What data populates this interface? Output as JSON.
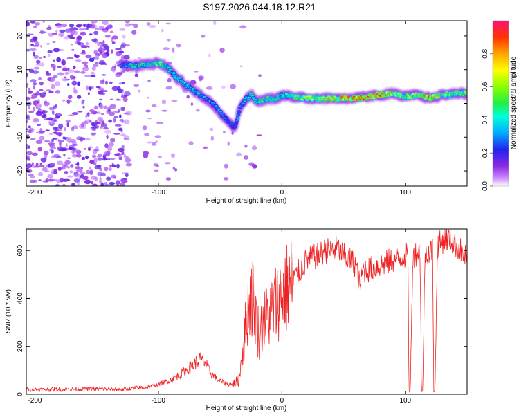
{
  "title": "S197.2026.044.18.12.R21",
  "chart_data": [
    {
      "type": "heatmap",
      "title": "S197.2026.044.18.12.R21",
      "xlabel": "Height of straight line (km)",
      "ylabel": "Frequency (Hz)",
      "xlim": [
        -207,
        150
      ],
      "ylim": [
        -24.5,
        24.5
      ],
      "xticks": [
        "-200",
        "-100",
        "0",
        "100"
      ],
      "xtick_values": [
        -200,
        -100,
        0,
        100
      ],
      "yticks": [
        "20",
        "10",
        "0",
        "-10",
        "-20"
      ],
      "ytick_values": [
        20,
        10,
        0,
        -10,
        -20
      ],
      "colorbar": {
        "label": "Normalized spectral amplitude",
        "range": [
          0,
          1
        ],
        "ticks": [
          "0.0",
          "0.2",
          "0.4",
          "0.6",
          "0.8"
        ],
        "tick_values": [
          0.0,
          0.2,
          0.4,
          0.6,
          0.8
        ]
      },
      "ridge": {
        "x": [
          -130,
          -120,
          -110,
          -100,
          -92,
          -85,
          -78,
          -70,
          -62,
          -55,
          -48,
          -42,
          -38,
          -34,
          -30,
          -25,
          -20,
          -15,
          -10,
          -5,
          0,
          10,
          20,
          40,
          60,
          80,
          90,
          100,
          110,
          120,
          130,
          140,
          150
        ],
        "y": [
          11.5,
          11.0,
          11.5,
          12.0,
          10.5,
          7.5,
          5.5,
          3.5,
          1.5,
          -0.5,
          -3.5,
          -6.0,
          -7.0,
          -1.5,
          1.0,
          2.5,
          0.5,
          0.8,
          1.5,
          1.2,
          2.5,
          2.0,
          1.5,
          1.5,
          1.5,
          2.5,
          3.0,
          2.0,
          2.5,
          1.5,
          2.5,
          3.0,
          3.0
        ],
        "amplitude": [
          0.3,
          0.5,
          0.55,
          0.6,
          0.45,
          0.45,
          0.4,
          0.45,
          0.35,
          0.35,
          0.35,
          0.3,
          0.25,
          0.35,
          0.4,
          0.45,
          0.5,
          0.55,
          0.6,
          0.5,
          0.5,
          0.6,
          0.65,
          0.8,
          0.9,
          0.95,
          0.8,
          0.65,
          0.7,
          0.9,
          0.7,
          0.65,
          0.6
        ]
      }
    },
    {
      "type": "line",
      "xlabel": "Height of straight line (km)",
      "ylabel": "SNR (10 * v/v)",
      "xlim": [
        -207,
        150
      ],
      "ylim": [
        0,
        690
      ],
      "xticks": [
        "-200",
        "-100",
        "0",
        "100"
      ],
      "xtick_values": [
        -200,
        -100,
        0,
        100
      ],
      "yticks": [
        "0",
        "200",
        "400",
        "600"
      ],
      "ytick_values": [
        0,
        200,
        400,
        600
      ],
      "series": [
        {
          "name": "SNR",
          "color": "#ee2222",
          "x": [
            -207,
            -180,
            -150,
            -130,
            -120,
            -110,
            -100,
            -90,
            -80,
            -72,
            -66,
            -62,
            -58,
            -52,
            -46,
            -40,
            -35,
            -30,
            -28,
            -25,
            -22,
            -20,
            -18,
            -15,
            -12,
            -10,
            -5,
            0,
            5,
            10,
            15,
            20,
            25,
            30,
            35,
            40,
            45,
            50,
            55,
            60,
            63,
            66,
            70,
            75,
            80,
            85,
            90,
            95,
            100,
            102,
            103,
            104,
            106,
            110,
            112,
            113,
            114,
            116,
            118,
            120,
            122,
            123,
            124,
            126,
            130,
            135,
            140,
            145,
            150
          ],
          "y": [
            20,
            20,
            22,
            20,
            25,
            30,
            40,
            60,
            90,
            120,
            150,
            130,
            90,
            60,
            45,
            40,
            60,
            250,
            350,
            420,
            380,
            280,
            260,
            300,
            320,
            340,
            380,
            420,
            450,
            480,
            520,
            560,
            570,
            580,
            600,
            600,
            610,
            580,
            560,
            540,
            450,
            520,
            520,
            530,
            540,
            550,
            560,
            570,
            580,
            590,
            10,
            10,
            580,
            590,
            600,
            10,
            10,
            590,
            600,
            590,
            610,
            10,
            10,
            620,
            640,
            650,
            630,
            600,
            560
          ]
        }
      ]
    }
  ]
}
